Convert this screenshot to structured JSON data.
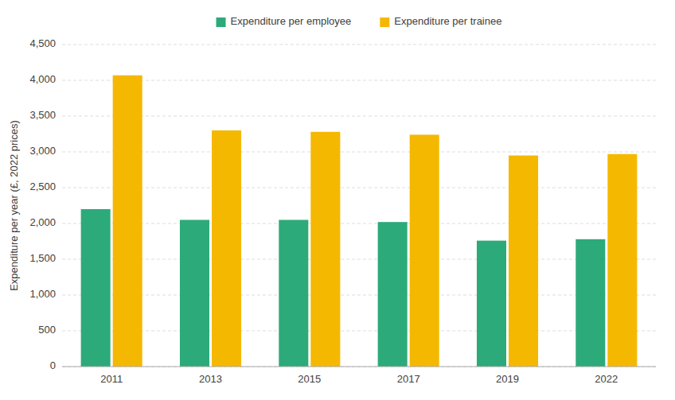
{
  "chart_data": {
    "type": "bar",
    "categories": [
      "2011",
      "2013",
      "2015",
      "2017",
      "2019",
      "2022"
    ],
    "series": [
      {
        "name": "Expenditure per employee",
        "color": "#2daa7a",
        "values": [
          2200,
          2050,
          2050,
          2020,
          1760,
          1780
        ]
      },
      {
        "name": "Expenditure per trainee",
        "color": "#f5b800",
        "values": [
          4070,
          3300,
          3280,
          3240,
          2950,
          2970
        ]
      }
    ],
    "ylabel": "Expenditure per year (£, 2022 prices)",
    "ylim": [
      0,
      4500
    ],
    "yticks": [
      0,
      500,
      {
        "value": 1000,
        "label": "1,000"
      },
      {
        "value": 1500,
        "label": "1,500"
      },
      {
        "value": 2000,
        "label": "2,000"
      },
      {
        "value": 2500,
        "label": "2,500"
      },
      {
        "value": 3000,
        "label": "3,000"
      },
      {
        "value": 3500,
        "label": "3,500"
      },
      {
        "value": 4000,
        "label": "4,000"
      },
      {
        "value": 4500,
        "label": "4,500"
      }
    ],
    "grid": true,
    "legend": "top"
  }
}
